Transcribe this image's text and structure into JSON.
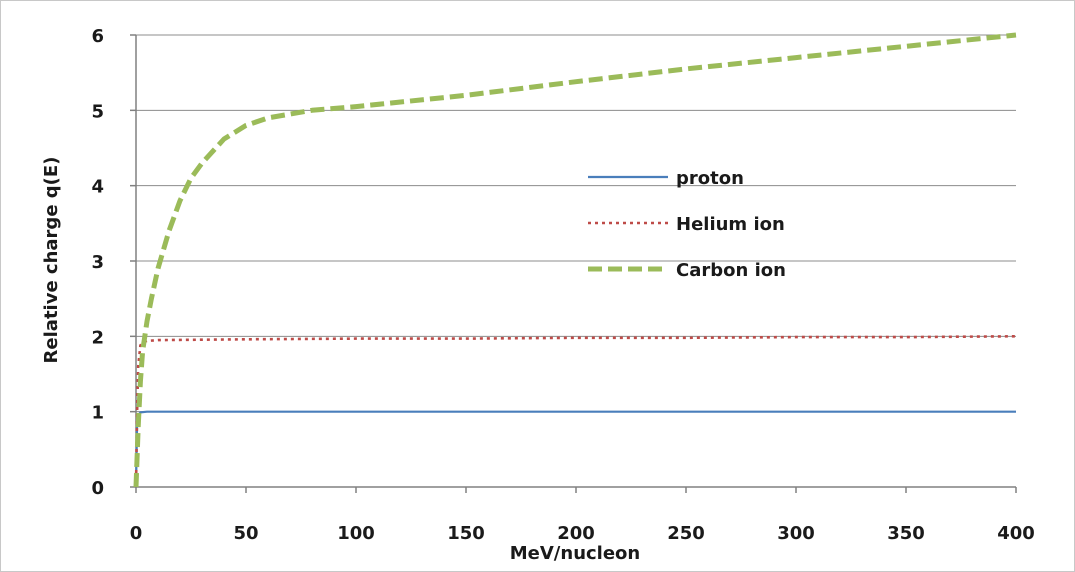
{
  "chart_data": {
    "type": "line",
    "title": "",
    "xlabel": "MeV/nucleon",
    "ylabel": "Relative charge q(E)",
    "xlim": [
      0,
      400
    ],
    "ylim": [
      0,
      6
    ],
    "xticks": [
      0,
      50,
      100,
      150,
      200,
      250,
      300,
      350,
      400
    ],
    "yticks": [
      0,
      1,
      2,
      3,
      4,
      5,
      6
    ],
    "grid": "horizontal",
    "legend_position": "center-right",
    "series": [
      {
        "name": "proton",
        "color": "#4a7ebb",
        "style": "solid",
        "x": [
          0,
          0.5,
          1,
          2,
          5,
          10,
          50,
          100,
          150,
          200,
          250,
          300,
          350,
          400
        ],
        "y": [
          0,
          0.85,
          0.95,
          0.99,
          1.0,
          1.0,
          1.0,
          1.0,
          1.0,
          1.0,
          1.0,
          1.0,
          1.0,
          1.0
        ]
      },
      {
        "name": "Helium ion",
        "color": "#be4b48",
        "style": "dotted",
        "x": [
          0,
          0.5,
          1,
          2,
          3,
          5,
          10,
          50,
          100,
          150,
          200,
          250,
          300,
          350,
          400
        ],
        "y": [
          0,
          1.0,
          1.6,
          1.88,
          1.92,
          1.94,
          1.95,
          1.96,
          1.97,
          1.97,
          1.98,
          1.98,
          1.99,
          1.99,
          2.0
        ]
      },
      {
        "name": "Carbon ion",
        "color": "#9bbb59",
        "style": "dashed",
        "x": [
          0,
          1,
          2,
          3,
          5,
          7,
          10,
          15,
          20,
          25,
          30,
          40,
          50,
          60,
          70,
          80,
          100,
          150,
          200,
          250,
          300,
          350,
          400
        ],
        "y": [
          0,
          0.8,
          1.4,
          1.8,
          2.2,
          2.5,
          2.9,
          3.4,
          3.8,
          4.1,
          4.3,
          4.62,
          4.8,
          4.9,
          4.95,
          5.0,
          5.05,
          5.2,
          5.38,
          5.55,
          5.7,
          5.85,
          6.0
        ]
      }
    ]
  }
}
